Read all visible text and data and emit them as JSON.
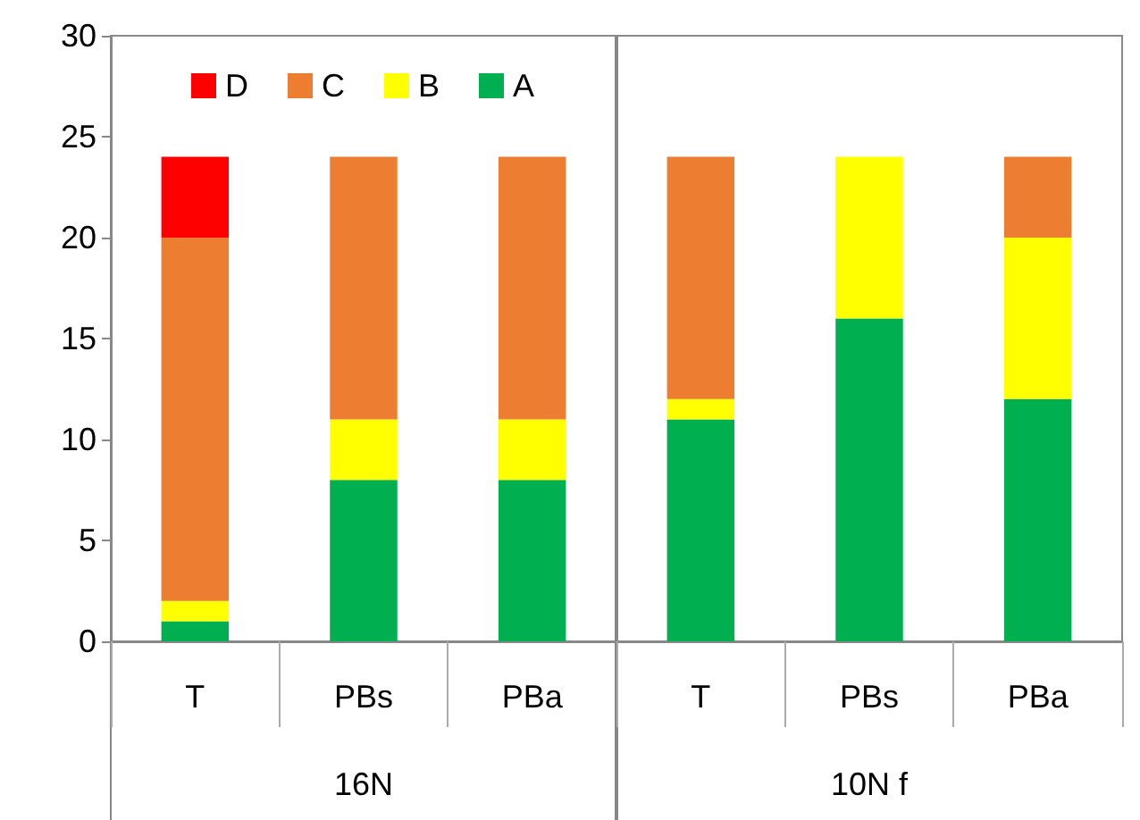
{
  "chart_data": {
    "type": "bar",
    "stacked": true,
    "categories": [
      "T",
      "PBs",
      "PBa",
      "T",
      "PBs",
      "PBa"
    ],
    "annotations": [
      "16N",
      "10N f"
    ],
    "series": [
      {
        "name": "A",
        "color": "#00b050",
        "values": [
          1,
          8,
          8,
          11,
          16,
          12
        ]
      },
      {
        "name": "B",
        "color": "#ffff00",
        "values": [
          1,
          3,
          3,
          1,
          8,
          8
        ]
      },
      {
        "name": "C",
        "color": "#ed7d31",
        "values": [
          18,
          13,
          13,
          12,
          0,
          4
        ]
      },
      {
        "name": "D",
        "color": "#ff0000",
        "values": [
          4,
          0,
          0,
          0,
          0,
          0
        ]
      }
    ],
    "ylim": [
      0,
      30
    ],
    "yticks": [
      0,
      5,
      10,
      15,
      20,
      25,
      30
    ],
    "grid": false,
    "legend": "top left"
  }
}
